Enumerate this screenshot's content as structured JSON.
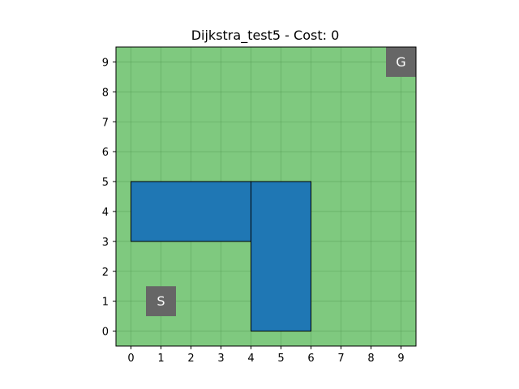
{
  "title": "Dijkstra_test5 - Cost: 0",
  "grid": {
    "cols": 10,
    "rows": 10,
    "x_ticks": [
      "0",
      "1",
      "2",
      "3",
      "4",
      "5",
      "6",
      "7",
      "8",
      "9"
    ],
    "y_ticks": [
      "0",
      "1",
      "2",
      "3",
      "4",
      "5",
      "6",
      "7",
      "8",
      "9"
    ],
    "xlim": [
      -0.5,
      9.5
    ],
    "ylim": [
      -0.5,
      9.5
    ],
    "gridlines": true
  },
  "obstacles": [
    {
      "name": "obstacle-horizontal",
      "x0": 0,
      "y0": 3,
      "x1": 4,
      "y1": 5
    },
    {
      "name": "obstacle-vertical",
      "x0": 4,
      "y0": 0,
      "x1": 6,
      "y1": 5
    }
  ],
  "start": {
    "label": "S",
    "x": 1,
    "y": 1
  },
  "goal": {
    "label": "G",
    "x": 9,
    "y": 9
  },
  "colors": {
    "background": "#7fc97f",
    "obstacle": "#1f77b4",
    "marker": "#666666",
    "grid": "#4a8f4a"
  }
}
